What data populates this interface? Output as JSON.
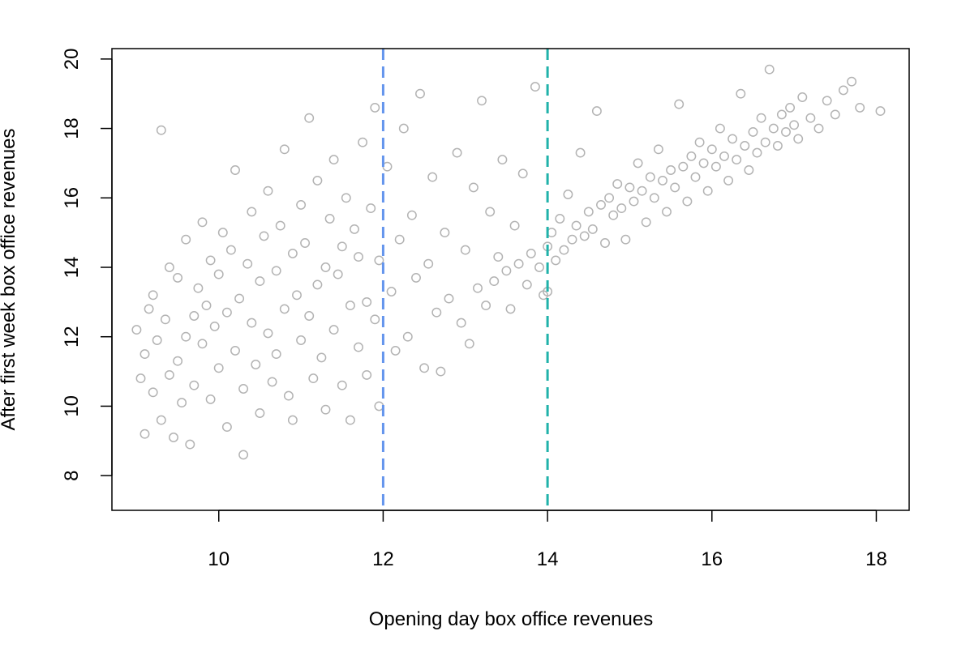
{
  "chart_data": {
    "type": "scatter",
    "title": "",
    "xlabel": "Opening day box office revenues",
    "ylabel": "After first week box office revenues",
    "xlim": [
      8.7,
      18.4
    ],
    "ylim": [
      7.0,
      20.3
    ],
    "x_ticks": [
      10,
      12,
      14,
      16,
      18
    ],
    "y_ticks": [
      8,
      10,
      12,
      14,
      16,
      18,
      20
    ],
    "grid": false,
    "legend": "none",
    "point_color": "#b3b3b3",
    "reference_lines": [
      {
        "x": 12,
        "color": "#6495ed",
        "style": "dashed"
      },
      {
        "x": 14,
        "color": "#20b2aa",
        "style": "dashed"
      }
    ],
    "points": [
      [
        9.0,
        12.2
      ],
      [
        9.05,
        10.8
      ],
      [
        9.1,
        11.5
      ],
      [
        9.1,
        9.2
      ],
      [
        9.15,
        12.8
      ],
      [
        9.2,
        10.4
      ],
      [
        9.2,
        13.2
      ],
      [
        9.25,
        11.9
      ],
      [
        9.3,
        9.6
      ],
      [
        9.3,
        17.95
      ],
      [
        9.35,
        12.5
      ],
      [
        9.4,
        10.9
      ],
      [
        9.4,
        14.0
      ],
      [
        9.45,
        9.1
      ],
      [
        9.5,
        11.3
      ],
      [
        9.5,
        13.7
      ],
      [
        9.55,
        10.1
      ],
      [
        9.6,
        12.0
      ],
      [
        9.6,
        14.8
      ],
      [
        9.65,
        8.9
      ],
      [
        9.7,
        12.6
      ],
      [
        9.7,
        10.6
      ],
      [
        9.75,
        13.4
      ],
      [
        9.8,
        11.8
      ],
      [
        9.8,
        15.3
      ],
      [
        9.85,
        12.9
      ],
      [
        9.9,
        10.2
      ],
      [
        9.9,
        14.2
      ],
      [
        9.95,
        12.3
      ],
      [
        10.0,
        13.8
      ],
      [
        10.0,
        11.1
      ],
      [
        10.05,
        15.0
      ],
      [
        10.1,
        9.4
      ],
      [
        10.1,
        12.7
      ],
      [
        10.15,
        14.5
      ],
      [
        10.2,
        11.6
      ],
      [
        10.2,
        16.8
      ],
      [
        10.25,
        13.1
      ],
      [
        10.3,
        10.5
      ],
      [
        10.3,
        8.6
      ],
      [
        10.35,
        14.1
      ],
      [
        10.4,
        12.4
      ],
      [
        10.4,
        15.6
      ],
      [
        10.45,
        11.2
      ],
      [
        10.5,
        13.6
      ],
      [
        10.5,
        9.8
      ],
      [
        10.55,
        14.9
      ],
      [
        10.6,
        12.1
      ],
      [
        10.6,
        16.2
      ],
      [
        10.65,
        10.7
      ],
      [
        10.7,
        13.9
      ],
      [
        10.7,
        11.5
      ],
      [
        10.75,
        15.2
      ],
      [
        10.8,
        12.8
      ],
      [
        10.8,
        17.4
      ],
      [
        10.85,
        10.3
      ],
      [
        10.9,
        14.4
      ],
      [
        10.9,
        9.6
      ],
      [
        10.95,
        13.2
      ],
      [
        11.0,
        15.8
      ],
      [
        11.0,
        11.9
      ],
      [
        11.05,
        14.7
      ],
      [
        11.1,
        12.6
      ],
      [
        11.1,
        18.3
      ],
      [
        11.15,
        10.8
      ],
      [
        11.2,
        13.5
      ],
      [
        11.2,
        16.5
      ],
      [
        11.25,
        11.4
      ],
      [
        11.3,
        14.0
      ],
      [
        11.3,
        9.9
      ],
      [
        11.35,
        15.4
      ],
      [
        11.4,
        12.2
      ],
      [
        11.4,
        17.1
      ],
      [
        11.45,
        13.8
      ],
      [
        11.5,
        10.6
      ],
      [
        11.5,
        14.6
      ],
      [
        11.55,
        16.0
      ],
      [
        11.6,
        12.9
      ],
      [
        11.6,
        9.6
      ],
      [
        11.65,
        15.1
      ],
      [
        11.7,
        11.7
      ],
      [
        11.7,
        14.3
      ],
      [
        11.75,
        17.6
      ],
      [
        11.8,
        13.0
      ],
      [
        11.8,
        10.9
      ],
      [
        11.85,
        15.7
      ],
      [
        11.9,
        12.5
      ],
      [
        11.9,
        18.6
      ],
      [
        11.95,
        14.2
      ],
      [
        11.95,
        10.0
      ],
      [
        12.05,
        16.9
      ],
      [
        12.1,
        13.3
      ],
      [
        12.15,
        11.6
      ],
      [
        12.2,
        14.8
      ],
      [
        12.25,
        18.0
      ],
      [
        12.3,
        12.0
      ],
      [
        12.35,
        15.5
      ],
      [
        12.4,
        13.7
      ],
      [
        12.45,
        19.0
      ],
      [
        12.5,
        11.1
      ],
      [
        12.55,
        14.1
      ],
      [
        12.6,
        16.6
      ],
      [
        12.65,
        12.7
      ],
      [
        12.7,
        11.0
      ],
      [
        12.75,
        15.0
      ],
      [
        12.8,
        13.1
      ],
      [
        12.9,
        17.3
      ],
      [
        12.95,
        12.4
      ],
      [
        13.0,
        14.5
      ],
      [
        13.05,
        11.8
      ],
      [
        13.1,
        16.3
      ],
      [
        13.15,
        13.4
      ],
      [
        13.2,
        18.8
      ],
      [
        13.25,
        12.9
      ],
      [
        13.3,
        15.6
      ],
      [
        13.35,
        13.6
      ],
      [
        13.4,
        14.3
      ],
      [
        13.45,
        17.1
      ],
      [
        13.5,
        13.9
      ],
      [
        13.55,
        12.8
      ],
      [
        13.6,
        15.2
      ],
      [
        13.65,
        14.1
      ],
      [
        13.7,
        16.7
      ],
      [
        13.75,
        13.5
      ],
      [
        13.8,
        14.4
      ],
      [
        13.85,
        19.2
      ],
      [
        13.9,
        14.0
      ],
      [
        13.95,
        13.2
      ],
      [
        14.0,
        14.6
      ],
      [
        14.0,
        13.3
      ],
      [
        14.05,
        15.0
      ],
      [
        14.1,
        14.2
      ],
      [
        14.15,
        15.4
      ],
      [
        14.2,
        14.5
      ],
      [
        14.25,
        16.1
      ],
      [
        14.3,
        14.8
      ],
      [
        14.35,
        15.2
      ],
      [
        14.4,
        17.3
      ],
      [
        14.45,
        14.9
      ],
      [
        14.5,
        15.6
      ],
      [
        14.55,
        15.1
      ],
      [
        14.6,
        18.5
      ],
      [
        14.65,
        15.8
      ],
      [
        14.7,
        14.7
      ],
      [
        14.75,
        16.0
      ],
      [
        14.8,
        15.5
      ],
      [
        14.85,
        16.4
      ],
      [
        14.9,
        15.7
      ],
      [
        14.95,
        14.8
      ],
      [
        15.0,
        16.3
      ],
      [
        15.05,
        15.9
      ],
      [
        15.1,
        17.0
      ],
      [
        15.15,
        16.2
      ],
      [
        15.2,
        15.3
      ],
      [
        15.25,
        16.6
      ],
      [
        15.3,
        16.0
      ],
      [
        15.35,
        17.4
      ],
      [
        15.4,
        16.5
      ],
      [
        15.45,
        15.6
      ],
      [
        15.5,
        16.8
      ],
      [
        15.55,
        16.3
      ],
      [
        15.6,
        18.7
      ],
      [
        15.65,
        16.9
      ],
      [
        15.7,
        15.9
      ],
      [
        15.75,
        17.2
      ],
      [
        15.8,
        16.6
      ],
      [
        15.85,
        17.6
      ],
      [
        15.9,
        17.0
      ],
      [
        15.95,
        16.2
      ],
      [
        16.0,
        17.4
      ],
      [
        16.05,
        16.9
      ],
      [
        16.1,
        18.0
      ],
      [
        16.15,
        17.2
      ],
      [
        16.2,
        16.5
      ],
      [
        16.25,
        17.7
      ],
      [
        16.3,
        17.1
      ],
      [
        16.35,
        19.0
      ],
      [
        16.4,
        17.5
      ],
      [
        16.45,
        16.8
      ],
      [
        16.5,
        17.9
      ],
      [
        16.55,
        17.3
      ],
      [
        16.6,
        18.3
      ],
      [
        16.65,
        17.6
      ],
      [
        16.7,
        19.7
      ],
      [
        16.75,
        18.0
      ],
      [
        16.8,
        17.5
      ],
      [
        16.85,
        18.4
      ],
      [
        16.9,
        17.9
      ],
      [
        16.95,
        18.6
      ],
      [
        17.0,
        18.1
      ],
      [
        17.05,
        17.7
      ],
      [
        17.1,
        18.9
      ],
      [
        17.2,
        18.3
      ],
      [
        17.3,
        18.0
      ],
      [
        17.4,
        18.8
      ],
      [
        17.5,
        18.4
      ],
      [
        17.6,
        19.1
      ],
      [
        17.7,
        19.35
      ],
      [
        17.8,
        18.6
      ],
      [
        18.05,
        18.5
      ]
    ]
  }
}
